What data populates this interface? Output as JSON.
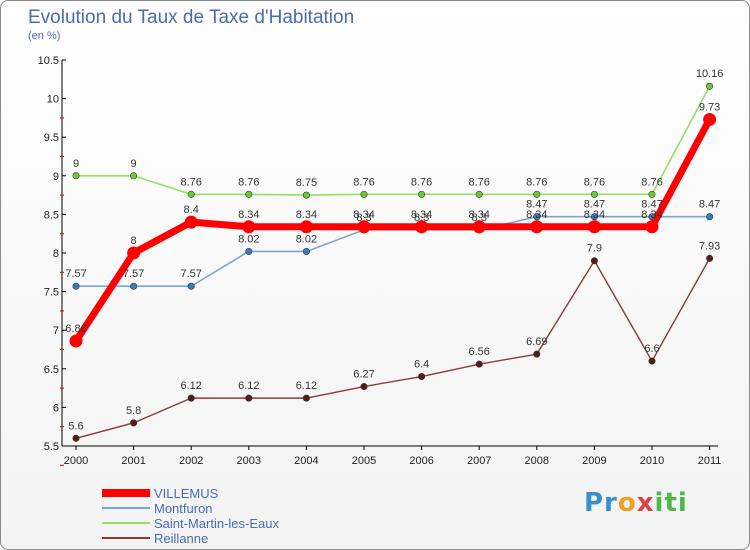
{
  "title": "Evolution du Taux de Taxe d'Habitation",
  "subtitle": "(en %)",
  "logo": "Proxiti",
  "chart_data": {
    "type": "line",
    "x": [
      "2000",
      "2001",
      "2002",
      "2003",
      "2004",
      "2005",
      "2006",
      "2007",
      "2008",
      "2009",
      "2010",
      "2011"
    ],
    "ylim": [
      5.5,
      10.5
    ],
    "yticks": [
      5.5,
      6,
      6.5,
      7,
      7.5,
      8,
      8.5,
      9,
      9.5,
      10,
      10.5
    ],
    "grid": false,
    "legend_position": "bottom-left",
    "series": [
      {
        "name": "VILLEMUS",
        "color": "#ff0000",
        "point_color": "#ff0000",
        "values": [
          6.86,
          8,
          8.4,
          8.34,
          8.34,
          8.34,
          8.34,
          8.34,
          8.34,
          8.34,
          8.34,
          9.73
        ],
        "labels": [
          "6.86",
          "8",
          "8.4",
          "8.34",
          "8.34",
          "8.34",
          "8.34",
          "8.34",
          "8.34",
          "8.34",
          "8.34",
          "9.73"
        ]
      },
      {
        "name": "Montfuron",
        "color": "#7aa7d4",
        "point_color": "#3a7bbf",
        "values": [
          7.57,
          7.57,
          7.57,
          8.02,
          8.02,
          8.3,
          8.3,
          8.3,
          8.47,
          8.47,
          8.47,
          8.47
        ],
        "labels": [
          "7.57",
          "7.57",
          "7.57",
          "8.02",
          "8.02",
          "8.3",
          "8.3",
          "8.3",
          "8.47",
          "8.47",
          "8.47",
          "8.47"
        ]
      },
      {
        "name": "Saint-Martin-les-Eaux",
        "color": "#99dd66",
        "point_color": "#66cc33",
        "values": [
          9,
          9,
          8.76,
          8.76,
          8.75,
          8.76,
          8.76,
          8.76,
          8.76,
          8.76,
          8.76,
          10.16
        ],
        "labels": [
          "9",
          "9",
          "8.76",
          "8.76",
          "8.75",
          "8.76",
          "8.76",
          "8.76",
          "8.76",
          "8.76",
          "8.76",
          "10.16"
        ]
      },
      {
        "name": "Reillanne",
        "color": "#8b3a3a",
        "point_color": "#5a1a1a",
        "values": [
          5.6,
          5.8,
          6.12,
          6.12,
          6.12,
          6.27,
          6.4,
          6.56,
          6.69,
          7.9,
          6.6,
          7.93
        ],
        "labels": [
          "5.6",
          "5.8",
          "6.12",
          "6.12",
          "6.12",
          "6.27",
          "6.4",
          "6.56",
          "6.69",
          "7.9",
          "6.6",
          "7.93"
        ]
      }
    ]
  }
}
